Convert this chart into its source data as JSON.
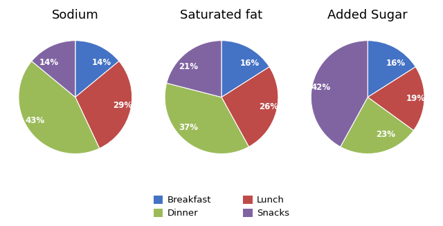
{
  "charts": [
    {
      "title": "Sodium",
      "values": [
        14,
        29,
        43,
        14
      ],
      "labels": [
        "14%",
        "29%",
        "43%",
        "14%"
      ],
      "order": [
        "Breakfast",
        "Lunch",
        "Dinner",
        "Snacks"
      ],
      "startangle": 90
    },
    {
      "title": "Saturated fat",
      "values": [
        16,
        26,
        37,
        21
      ],
      "labels": [
        "16%",
        "26%",
        "37%",
        "21%"
      ],
      "order": [
        "Breakfast",
        "Lunch",
        "Dinner",
        "Snacks"
      ],
      "startangle": 90
    },
    {
      "title": "Added Sugar",
      "values": [
        16,
        19,
        23,
        42
      ],
      "labels": [
        "16%",
        "19%",
        "23%",
        "42%"
      ],
      "order": [
        "Breakfast",
        "Lunch",
        "Dinner",
        "Snacks"
      ],
      "startangle": 90
    }
  ],
  "colors": {
    "Breakfast": "#4472C4",
    "Lunch": "#BE4B48",
    "Dinner": "#9BBB59",
    "Snacks": "#8064A2"
  },
  "legend_order": [
    "Breakfast",
    "Dinner",
    "Lunch",
    "Snacks"
  ],
  "background_color": "#FFFFFF",
  "label_fontsize": 8.5,
  "title_fontsize": 13
}
